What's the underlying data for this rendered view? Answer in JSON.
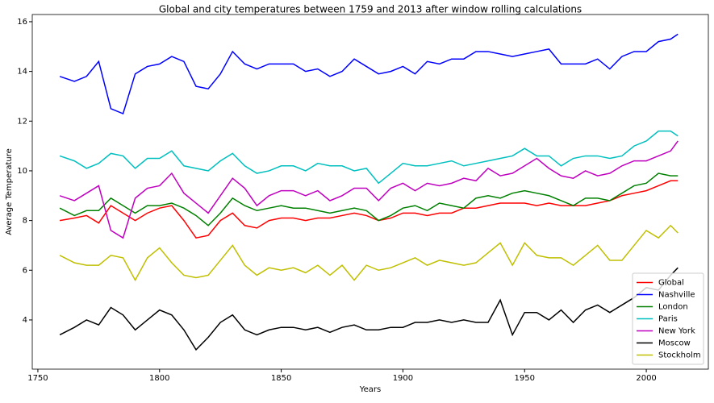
{
  "chart_data": {
    "type": "line",
    "title": "Global and city temperatures between 1759 and 2013 after window rolling calculations",
    "x_label": "Years",
    "y_label": "Average Temperature",
    "x": [
      1759,
      1765,
      1770,
      1775,
      1780,
      1785,
      1790,
      1795,
      1800,
      1805,
      1810,
      1815,
      1820,
      1825,
      1830,
      1835,
      1840,
      1845,
      1850,
      1855,
      1860,
      1865,
      1870,
      1875,
      1880,
      1885,
      1890,
      1895,
      1900,
      1905,
      1910,
      1915,
      1920,
      1925,
      1930,
      1935,
      1940,
      1945,
      1950,
      1955,
      1960,
      1965,
      1970,
      1975,
      1980,
      1985,
      1990,
      1995,
      2000,
      2005,
      2010,
      2013
    ],
    "series": [
      {
        "name": "Global",
        "color": "#ff0000",
        "values": [
          8.0,
          8.1,
          8.2,
          7.9,
          8.6,
          8.3,
          8.0,
          8.3,
          8.5,
          8.6,
          8.0,
          7.3,
          7.4,
          8.0,
          8.3,
          7.8,
          7.7,
          8.0,
          8.1,
          8.1,
          8.0,
          8.1,
          8.1,
          8.2,
          8.3,
          8.2,
          8.0,
          8.1,
          8.3,
          8.3,
          8.2,
          8.3,
          8.3,
          8.5,
          8.5,
          8.6,
          8.7,
          8.7,
          8.7,
          8.6,
          8.7,
          8.6,
          8.6,
          8.6,
          8.7,
          8.8,
          9.0,
          9.1,
          9.2,
          9.4,
          9.6,
          9.6
        ]
      },
      {
        "name": "Nashville",
        "color": "#0000ff",
        "values": [
          13.8,
          13.6,
          13.8,
          14.4,
          12.5,
          12.3,
          13.9,
          14.2,
          14.3,
          14.6,
          14.4,
          13.4,
          13.3,
          13.9,
          14.8,
          14.3,
          14.1,
          14.3,
          14.3,
          14.3,
          14.0,
          14.1,
          13.8,
          14.0,
          14.5,
          14.2,
          13.9,
          14.0,
          14.2,
          13.9,
          14.4,
          14.3,
          14.5,
          14.5,
          14.8,
          14.8,
          14.7,
          14.6,
          14.7,
          14.8,
          14.9,
          14.3,
          14.3,
          14.3,
          14.5,
          14.1,
          14.6,
          14.8,
          14.8,
          15.2,
          15.3,
          15.5
        ]
      },
      {
        "name": "London",
        "color": "#008000",
        "values": [
          8.5,
          8.2,
          8.4,
          8.4,
          8.9,
          8.6,
          8.3,
          8.6,
          8.6,
          8.7,
          8.5,
          8.2,
          7.8,
          8.3,
          8.9,
          8.6,
          8.4,
          8.5,
          8.6,
          8.5,
          8.5,
          8.4,
          8.3,
          8.4,
          8.5,
          8.4,
          8.0,
          8.2,
          8.5,
          8.6,
          8.4,
          8.7,
          8.6,
          8.5,
          8.9,
          9.0,
          8.9,
          9.1,
          9.2,
          9.1,
          9.0,
          8.8,
          8.6,
          8.9,
          8.9,
          8.8,
          9.1,
          9.4,
          9.5,
          9.9,
          9.8,
          9.8
        ]
      },
      {
        "name": "Paris",
        "color": "#00bfbf",
        "values": [
          10.6,
          10.4,
          10.1,
          10.3,
          10.7,
          10.6,
          10.1,
          10.5,
          10.5,
          10.8,
          10.2,
          10.1,
          10.0,
          10.4,
          10.7,
          10.2,
          9.9,
          10.0,
          10.2,
          10.2,
          10.0,
          10.3,
          10.2,
          10.2,
          10.0,
          10.1,
          9.5,
          9.9,
          10.3,
          10.2,
          10.2,
          10.3,
          10.4,
          10.2,
          10.3,
          10.4,
          10.5,
          10.6,
          10.9,
          10.6,
          10.6,
          10.2,
          10.5,
          10.6,
          10.6,
          10.5,
          10.6,
          11.0,
          11.2,
          11.6,
          11.6,
          11.4
        ]
      },
      {
        "name": "New York",
        "color": "#bf00bf",
        "values": [
          9.0,
          8.8,
          9.1,
          9.4,
          7.6,
          7.3,
          8.9,
          9.3,
          9.4,
          9.9,
          9.1,
          8.7,
          8.3,
          9.0,
          9.7,
          9.3,
          8.6,
          9.0,
          9.2,
          9.2,
          9.0,
          9.2,
          8.8,
          9.0,
          9.3,
          9.3,
          8.8,
          9.3,
          9.5,
          9.2,
          9.5,
          9.4,
          9.5,
          9.7,
          9.6,
          10.1,
          9.8,
          9.9,
          10.2,
          10.5,
          10.1,
          9.8,
          9.7,
          10.0,
          9.8,
          9.9,
          10.2,
          10.4,
          10.4,
          10.6,
          10.8,
          11.2
        ]
      },
      {
        "name": "Moscow",
        "color": "#000000",
        "values": [
          3.4,
          3.7,
          4.0,
          3.8,
          4.5,
          4.2,
          3.6,
          4.0,
          4.4,
          4.2,
          3.6,
          2.8,
          3.3,
          3.9,
          4.2,
          3.6,
          3.4,
          3.6,
          3.7,
          3.7,
          3.6,
          3.7,
          3.5,
          3.7,
          3.8,
          3.6,
          3.6,
          3.7,
          3.7,
          3.9,
          3.9,
          4.0,
          3.9,
          4.0,
          3.9,
          3.9,
          4.8,
          3.4,
          4.3,
          4.3,
          4.0,
          4.4,
          3.9,
          4.4,
          4.6,
          4.3,
          4.6,
          4.9,
          5.3,
          5.2,
          5.8,
          6.1
        ]
      },
      {
        "name": "Stockholm",
        "color": "#bfbf00",
        "values": [
          6.6,
          6.3,
          6.2,
          6.2,
          6.6,
          6.5,
          5.6,
          6.5,
          6.9,
          6.3,
          5.8,
          5.7,
          5.8,
          6.4,
          7.0,
          6.2,
          5.8,
          6.1,
          6.0,
          6.1,
          5.9,
          6.2,
          5.8,
          6.2,
          5.6,
          6.2,
          6.0,
          6.1,
          6.3,
          6.5,
          6.2,
          6.4,
          6.3,
          6.2,
          6.3,
          6.7,
          7.1,
          6.2,
          7.1,
          6.6,
          6.5,
          6.5,
          6.2,
          6.6,
          7.0,
          6.4,
          6.4,
          7.0,
          7.6,
          7.3,
          7.8,
          7.5
        ]
      }
    ],
    "xlim": [
      1747.7,
      2025.5
    ],
    "xticks": [
      1750,
      1800,
      1850,
      1900,
      1950,
      2000
    ],
    "ylim": [
      2.02,
      16.29
    ],
    "yticks": [
      4,
      6,
      8,
      10,
      12,
      14,
      16
    ],
    "legend": "lower right",
    "grid": false
  }
}
